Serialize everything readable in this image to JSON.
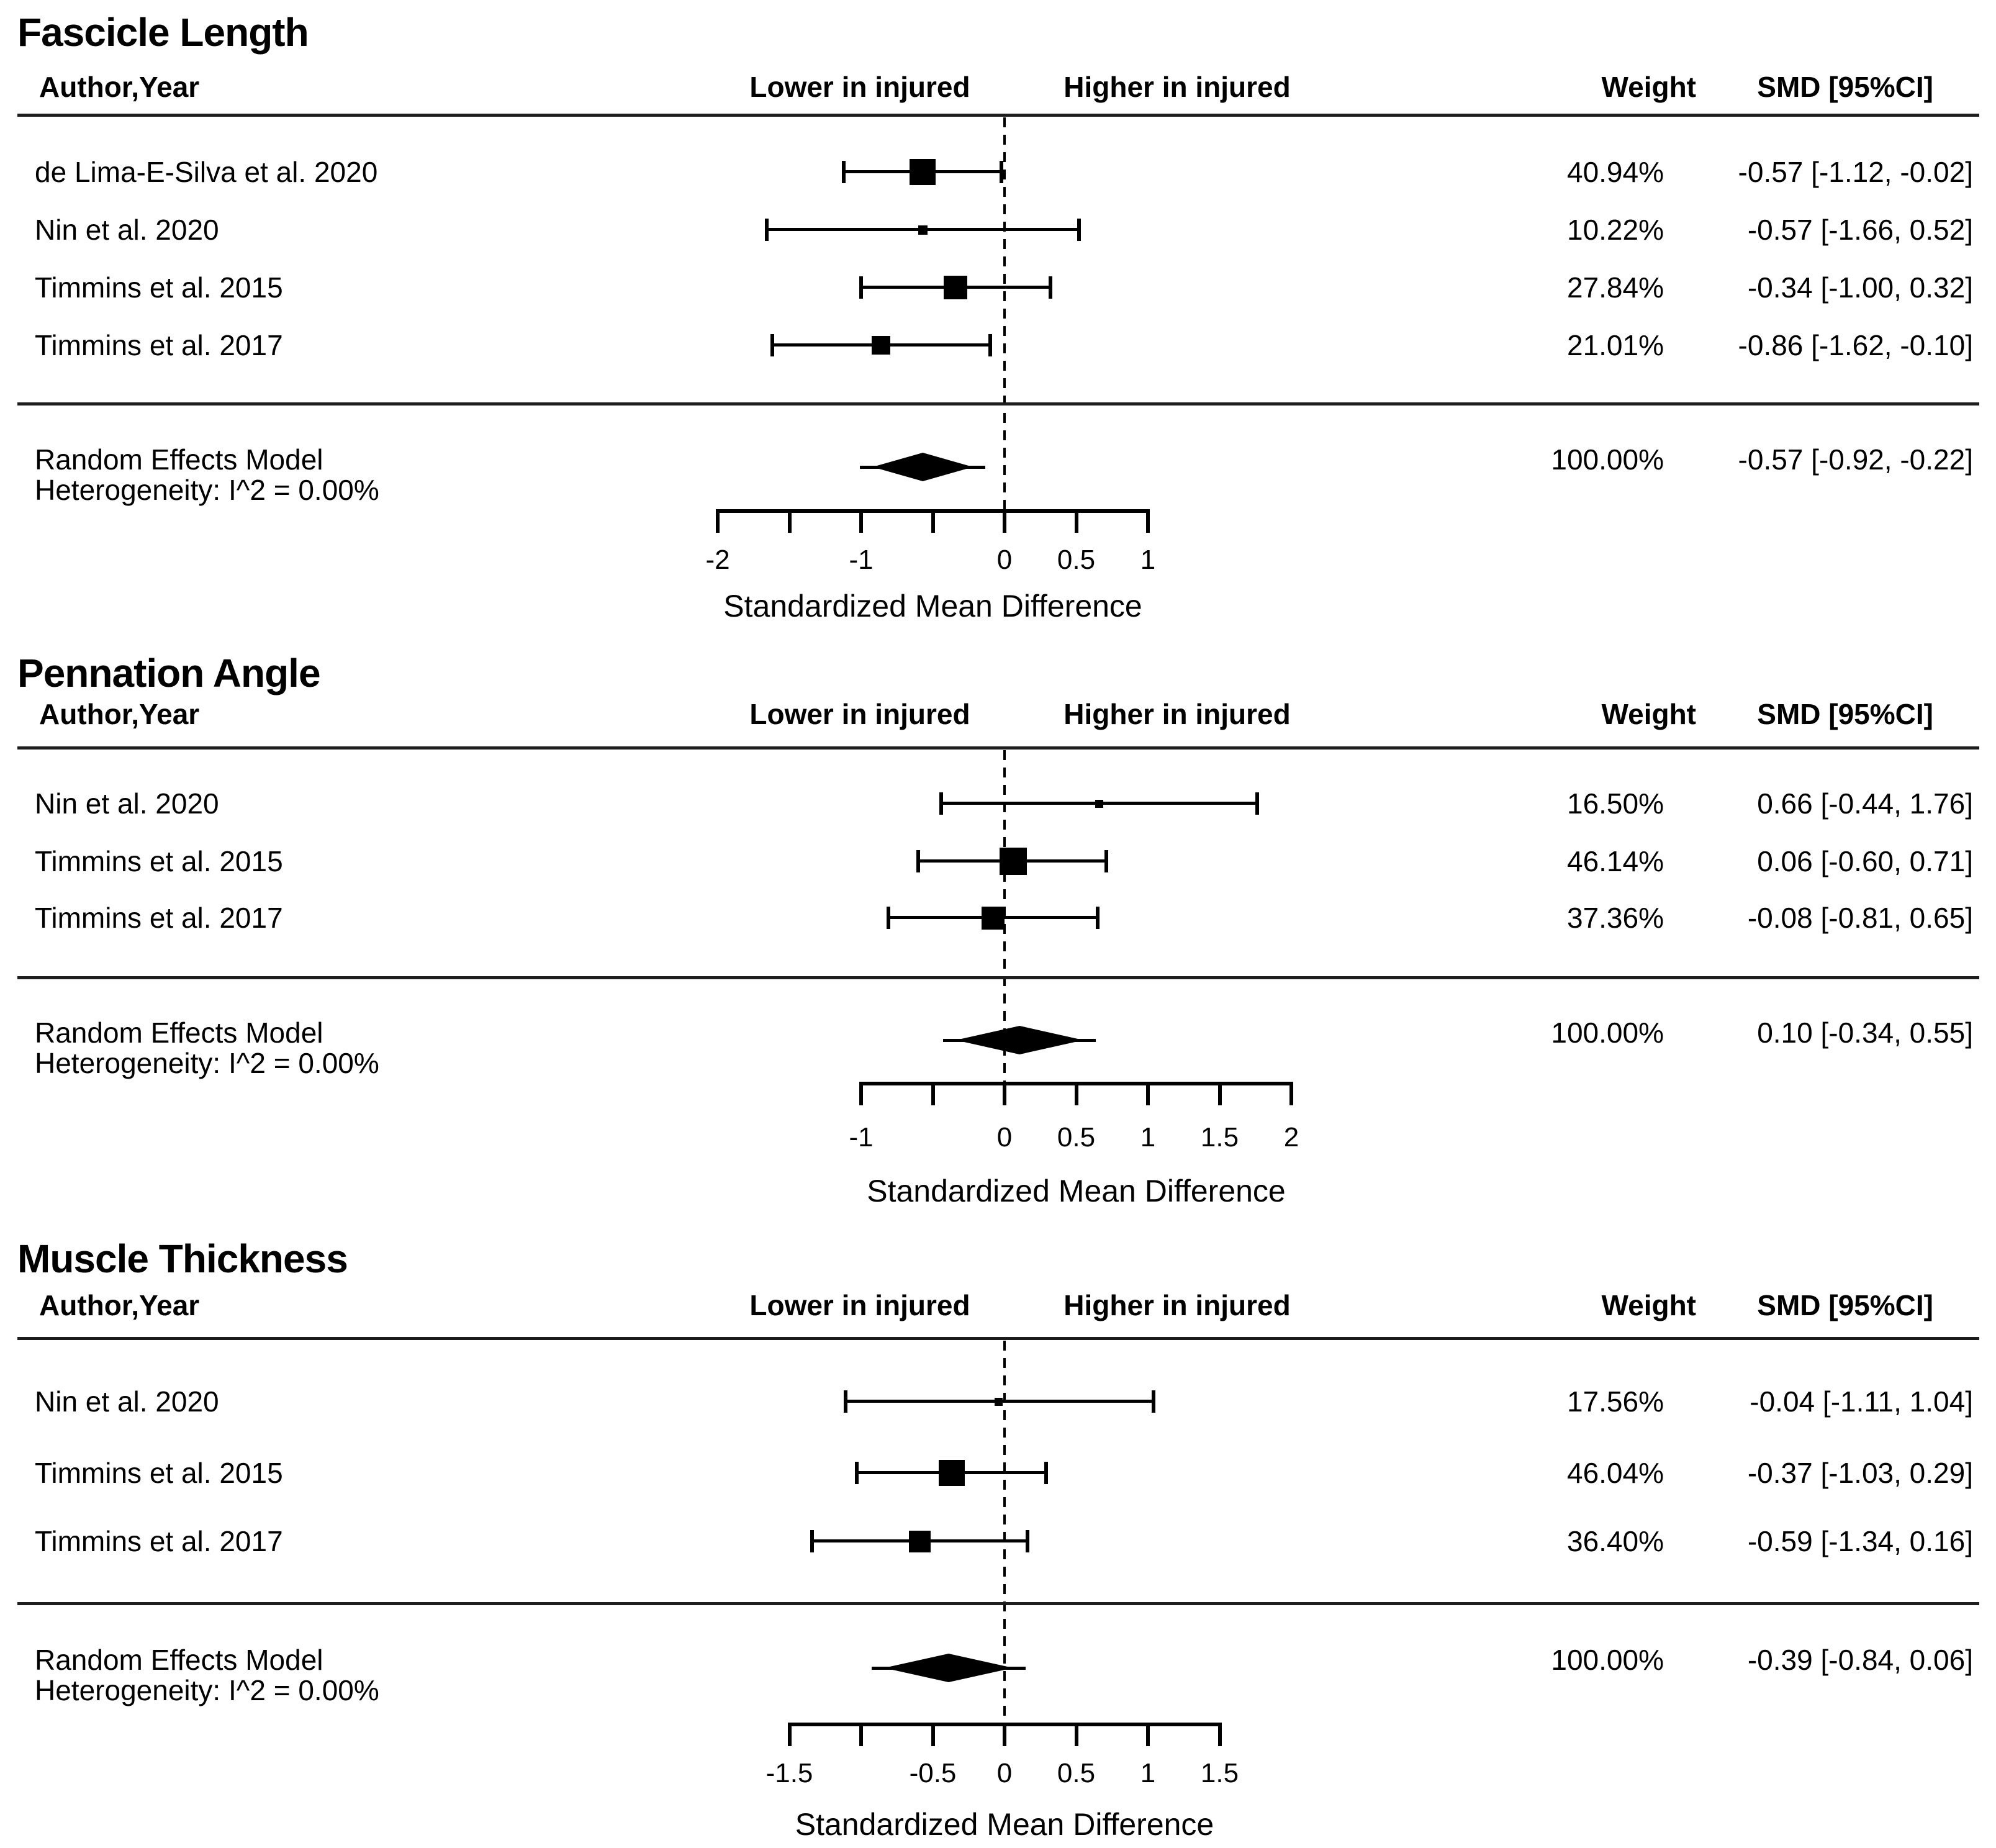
{
  "figure": {
    "kind": "meta-analysis-forest-plot",
    "background": "#ffffff",
    "ink": "#000000"
  },
  "chart_data": [
    {
      "type": "forest",
      "title": "Fascicle Length",
      "headers": {
        "author": "Author,Year",
        "lower": "Lower in injured",
        "higher": "Higher in injured",
        "weight": "Weight",
        "smd": "SMD [95%CI]"
      },
      "studies": [
        {
          "label": "de Lima-E-Silva et al. 2020",
          "weight": "40.94%",
          "smd": "-0.57 [-1.12, -0.02]",
          "est": -0.57,
          "lo": -1.12,
          "hi": -0.02,
          "size": 42
        },
        {
          "label": "Nin et al. 2020",
          "weight": "10.22%",
          "smd": "-0.57 [-1.66, 0.52]",
          "est": -0.57,
          "lo": -1.66,
          "hi": 0.52,
          "size": 15
        },
        {
          "label": "Timmins et al. 2015",
          "weight": "27.84%",
          "smd": "-0.34 [-1.00, 0.32]",
          "est": -0.34,
          "lo": -1.0,
          "hi": 0.32,
          "size": 38
        },
        {
          "label": "Timmins et al. 2017",
          "weight": "21.01%",
          "smd": "-0.86 [-1.62, -0.10]",
          "est": -0.86,
          "lo": -1.62,
          "hi": -0.1,
          "size": 30
        }
      ],
      "summary": {
        "label": "Random Effects Model",
        "heterogeneity": "Heterogeneity: I^2 = 0.00%",
        "weight": "100.00%",
        "smd": "-0.57 [-0.92, -0.22]",
        "est": -0.57,
        "lo": -0.92,
        "hi": -0.22
      },
      "axis": {
        "min": -2,
        "max": 1,
        "label": "Standardized Mean Difference",
        "zero_line": 0,
        "ticks": [
          {
            "v": -2,
            "t": "-2"
          },
          {
            "v": -1.5,
            "t": ""
          },
          {
            "v": -1,
            "t": "-1"
          },
          {
            "v": -0.5,
            "t": ""
          },
          {
            "v": 0,
            "t": "0"
          },
          {
            "v": 0.5,
            "t": "0.5"
          },
          {
            "v": 1,
            "t": "1"
          }
        ]
      }
    },
    {
      "type": "forest",
      "title": "Pennation Angle",
      "headers": {
        "author": "Author,Year",
        "lower": "Lower in injured",
        "higher": "Higher in injured",
        "weight": "Weight",
        "smd": "SMD [95%CI]"
      },
      "studies": [
        {
          "label": "Nin et al. 2020",
          "weight": "16.50%",
          "smd": "0.66 [-0.44, 1.76]",
          "est": 0.66,
          "lo": -0.44,
          "hi": 1.76,
          "size": 13
        },
        {
          "label": "Timmins et al. 2015",
          "weight": "46.14%",
          "smd": "0.06 [-0.60, 0.71]",
          "est": 0.06,
          "lo": -0.6,
          "hi": 0.71,
          "size": 44
        },
        {
          "label": "Timmins et al. 2017",
          "weight": "37.36%",
          "smd": "-0.08 [-0.81, 0.65]",
          "est": -0.08,
          "lo": -0.81,
          "hi": 0.65,
          "size": 37
        }
      ],
      "summary": {
        "label": "Random Effects Model",
        "heterogeneity": "Heterogeneity: I^2 = 0.00%",
        "weight": "100.00%",
        "smd": "0.10 [-0.34, 0.55]",
        "est": 0.1,
        "lo": -0.34,
        "hi": 0.55
      },
      "axis": {
        "min": -1,
        "max": 2,
        "label": "Standardized Mean Difference",
        "zero_line": 0,
        "ticks": [
          {
            "v": -1,
            "t": "-1"
          },
          {
            "v": -0.5,
            "t": ""
          },
          {
            "v": 0,
            "t": "0"
          },
          {
            "v": 0.5,
            "t": "0.5"
          },
          {
            "v": 1,
            "t": "1"
          },
          {
            "v": 1.5,
            "t": "1.5"
          },
          {
            "v": 2,
            "t": "2"
          }
        ]
      }
    },
    {
      "type": "forest",
      "title": "Muscle Thickness",
      "headers": {
        "author": "Author,Year",
        "lower": "Lower in injured",
        "higher": "Higher in injured",
        "weight": "Weight",
        "smd": "SMD [95%CI]"
      },
      "studies": [
        {
          "label": "Nin et al. 2020",
          "weight": "17.56%",
          "smd": "-0.04 [-1.11, 1.04]",
          "est": -0.04,
          "lo": -1.11,
          "hi": 1.04,
          "size": 13
        },
        {
          "label": "Timmins et al. 2015",
          "weight": "46.04%",
          "smd": "-0.37 [-1.03, 0.29]",
          "est": -0.37,
          "lo": -1.03,
          "hi": 0.29,
          "size": 42
        },
        {
          "label": "Timmins et al. 2017",
          "weight": "36.40%",
          "smd": "-0.59 [-1.34, 0.16]",
          "est": -0.59,
          "lo": -1.34,
          "hi": 0.16,
          "size": 35
        }
      ],
      "summary": {
        "label": "Random Effects Model",
        "heterogeneity": "Heterogeneity: I^2 = 0.00%",
        "weight": "100.00%",
        "smd": "-0.39 [-0.84, 0.06]",
        "est": -0.39,
        "lo": -0.84,
        "hi": 0.06
      },
      "axis": {
        "min": -1.5,
        "max": 1.5,
        "label": "Standardized Mean Difference",
        "zero_line": 0,
        "ticks": [
          {
            "v": -1.5,
            "t": "-1.5"
          },
          {
            "v": -1,
            "t": ""
          },
          {
            "v": -0.5,
            "t": "-0.5"
          },
          {
            "v": 0,
            "t": "0"
          },
          {
            "v": 0.5,
            "t": "0.5"
          },
          {
            "v": 1,
            "t": "1"
          },
          {
            "v": 1.5,
            "t": "1.5"
          }
        ]
      }
    }
  ]
}
